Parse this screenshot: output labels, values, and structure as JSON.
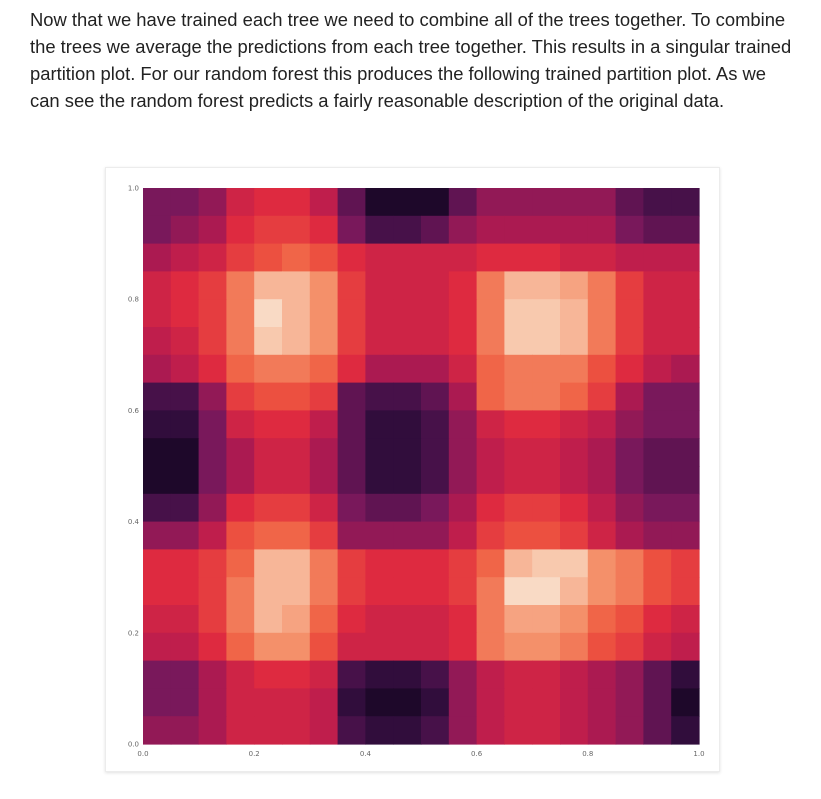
{
  "article": {
    "paragraph": "Now that we have trained each tree we need to combine all of the trees together. To combine the trees we average the predictions from each tree together. This results in a singular trained partition plot. For our random forest this produces the following trained partition plot. As we can see the random forest predicts a fairly reasonable description of the original data."
  },
  "chart_data": {
    "type": "heatmap",
    "title": "",
    "xlabel": "",
    "ylabel": "",
    "xlim": [
      0.0,
      1.0
    ],
    "ylim": [
      0.0,
      1.0
    ],
    "x_ticks": [
      "0.0",
      "0.2",
      "0.4",
      "0.6",
      "0.8",
      "1.0"
    ],
    "y_ticks": [
      "0.0",
      "0.2",
      "0.4",
      "0.6",
      "0.8",
      "1.0"
    ],
    "grid": false,
    "legend": "none",
    "colormap": [
      "#0b0418",
      "#3b0f45",
      "#79185b",
      "#b71b4f",
      "#de2a40",
      "#ef5a40",
      "#f4906a",
      "#f8c0a3",
      "#faebdc"
    ],
    "x_centers": [
      0.025,
      0.075,
      0.125,
      0.175,
      0.225,
      0.275,
      0.325,
      0.375,
      0.425,
      0.475,
      0.525,
      0.575,
      0.625,
      0.675,
      0.725,
      0.775,
      0.825,
      0.875,
      0.925,
      0.975
    ],
    "y_centers": [
      0.975,
      0.925,
      0.875,
      0.825,
      0.775,
      0.725,
      0.675,
      0.625,
      0.575,
      0.525,
      0.475,
      0.425,
      0.375,
      0.325,
      0.275,
      0.225,
      0.175,
      0.125,
      0.075,
      0.025
    ],
    "z": [
      [
        0.25,
        0.25,
        0.3,
        0.45,
        0.5,
        0.5,
        0.4,
        0.2,
        0.05,
        0.05,
        0.05,
        0.2,
        0.3,
        0.3,
        0.3,
        0.3,
        0.3,
        0.2,
        0.15,
        0.15
      ],
      [
        0.25,
        0.3,
        0.35,
        0.5,
        0.55,
        0.55,
        0.5,
        0.25,
        0.15,
        0.15,
        0.2,
        0.3,
        0.35,
        0.35,
        0.35,
        0.35,
        0.35,
        0.25,
        0.2,
        0.2
      ],
      [
        0.35,
        0.4,
        0.45,
        0.55,
        0.6,
        0.65,
        0.6,
        0.5,
        0.45,
        0.45,
        0.45,
        0.45,
        0.5,
        0.5,
        0.5,
        0.45,
        0.45,
        0.4,
        0.4,
        0.4
      ],
      [
        0.45,
        0.5,
        0.55,
        0.7,
        0.85,
        0.85,
        0.75,
        0.55,
        0.45,
        0.45,
        0.45,
        0.5,
        0.7,
        0.85,
        0.85,
        0.8,
        0.7,
        0.55,
        0.45,
        0.45
      ],
      [
        0.45,
        0.5,
        0.55,
        0.7,
        0.95,
        0.85,
        0.75,
        0.55,
        0.45,
        0.45,
        0.45,
        0.5,
        0.7,
        0.9,
        0.9,
        0.85,
        0.7,
        0.55,
        0.45,
        0.45
      ],
      [
        0.4,
        0.45,
        0.55,
        0.7,
        0.9,
        0.85,
        0.75,
        0.55,
        0.45,
        0.45,
        0.45,
        0.5,
        0.7,
        0.9,
        0.9,
        0.85,
        0.7,
        0.55,
        0.45,
        0.45
      ],
      [
        0.35,
        0.4,
        0.5,
        0.65,
        0.7,
        0.7,
        0.65,
        0.5,
        0.35,
        0.35,
        0.35,
        0.45,
        0.65,
        0.7,
        0.7,
        0.7,
        0.6,
        0.5,
        0.4,
        0.35
      ],
      [
        0.15,
        0.15,
        0.3,
        0.55,
        0.6,
        0.6,
        0.55,
        0.2,
        0.15,
        0.15,
        0.2,
        0.35,
        0.65,
        0.7,
        0.7,
        0.65,
        0.55,
        0.35,
        0.25,
        0.25
      ],
      [
        0.1,
        0.1,
        0.25,
        0.45,
        0.5,
        0.5,
        0.4,
        0.2,
        0.1,
        0.1,
        0.15,
        0.3,
        0.45,
        0.5,
        0.5,
        0.45,
        0.4,
        0.3,
        0.25,
        0.25
      ],
      [
        0.05,
        0.05,
        0.25,
        0.35,
        0.45,
        0.45,
        0.35,
        0.2,
        0.1,
        0.1,
        0.15,
        0.3,
        0.4,
        0.45,
        0.45,
        0.4,
        0.35,
        0.25,
        0.2,
        0.2
      ],
      [
        0.05,
        0.05,
        0.25,
        0.35,
        0.45,
        0.45,
        0.35,
        0.2,
        0.1,
        0.1,
        0.15,
        0.3,
        0.4,
        0.45,
        0.45,
        0.4,
        0.35,
        0.25,
        0.2,
        0.2
      ],
      [
        0.15,
        0.15,
        0.3,
        0.5,
        0.55,
        0.55,
        0.45,
        0.25,
        0.2,
        0.2,
        0.25,
        0.35,
        0.5,
        0.55,
        0.55,
        0.5,
        0.4,
        0.3,
        0.25,
        0.25
      ],
      [
        0.3,
        0.3,
        0.4,
        0.6,
        0.65,
        0.65,
        0.55,
        0.3,
        0.3,
        0.3,
        0.3,
        0.4,
        0.55,
        0.6,
        0.6,
        0.55,
        0.45,
        0.35,
        0.3,
        0.3
      ],
      [
        0.5,
        0.5,
        0.55,
        0.65,
        0.85,
        0.85,
        0.7,
        0.55,
        0.5,
        0.5,
        0.5,
        0.55,
        0.65,
        0.85,
        0.9,
        0.9,
        0.75,
        0.7,
        0.6,
        0.55
      ],
      [
        0.5,
        0.5,
        0.55,
        0.7,
        0.85,
        0.85,
        0.7,
        0.55,
        0.5,
        0.5,
        0.5,
        0.55,
        0.7,
        0.95,
        0.95,
        0.85,
        0.75,
        0.7,
        0.6,
        0.55
      ],
      [
        0.45,
        0.45,
        0.55,
        0.7,
        0.85,
        0.8,
        0.65,
        0.5,
        0.45,
        0.45,
        0.45,
        0.5,
        0.7,
        0.8,
        0.8,
        0.75,
        0.65,
        0.6,
        0.5,
        0.45
      ],
      [
        0.4,
        0.4,
        0.5,
        0.65,
        0.75,
        0.75,
        0.6,
        0.45,
        0.45,
        0.45,
        0.45,
        0.5,
        0.7,
        0.75,
        0.75,
        0.7,
        0.6,
        0.55,
        0.45,
        0.4
      ],
      [
        0.25,
        0.25,
        0.35,
        0.45,
        0.5,
        0.5,
        0.45,
        0.15,
        0.1,
        0.1,
        0.15,
        0.3,
        0.4,
        0.45,
        0.45,
        0.4,
        0.35,
        0.3,
        0.2,
        0.1
      ],
      [
        0.25,
        0.25,
        0.35,
        0.45,
        0.45,
        0.45,
        0.4,
        0.1,
        0.05,
        0.05,
        0.1,
        0.3,
        0.4,
        0.45,
        0.45,
        0.4,
        0.35,
        0.3,
        0.2,
        0.05
      ],
      [
        0.3,
        0.3,
        0.35,
        0.45,
        0.45,
        0.45,
        0.4,
        0.15,
        0.1,
        0.1,
        0.15,
        0.3,
        0.4,
        0.45,
        0.45,
        0.4,
        0.35,
        0.3,
        0.2,
        0.1
      ]
    ]
  }
}
